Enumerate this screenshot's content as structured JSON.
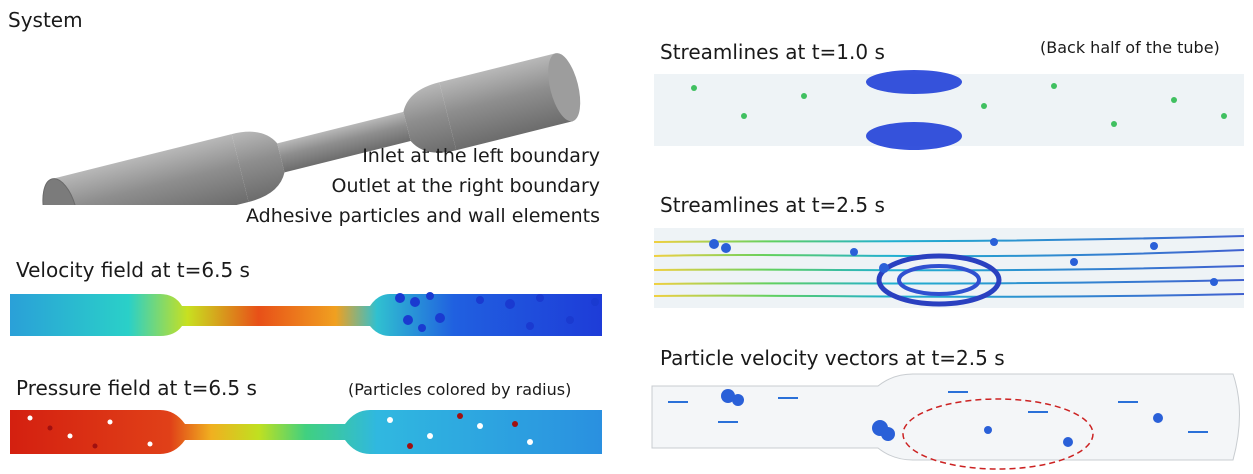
{
  "system": {
    "title": "System",
    "notes": [
      "Inlet at the left boundary",
      "Outlet at the right boundary",
      "Adhesive particles and wall elements"
    ]
  },
  "velocity_panel": {
    "title": "Velocity field at t=6.5 s"
  },
  "pressure_panel": {
    "title": "Pressure field at t=6.5 s",
    "note": "(Particles colored by radius)"
  },
  "stream1_panel": {
    "title": "Streamlines at t=1.0 s",
    "note": "(Back half of the tube)"
  },
  "stream2_panel": {
    "title": "Streamlines at t=2.5 s"
  },
  "vectors_panel": {
    "title": "Particle velocity vectors at t=2.5 s"
  },
  "colors": {
    "tube_gray": "#8c8c8c",
    "velocity_low": "#1e3cd8",
    "velocity_high": "#e02010",
    "pressure_high": "#d42010",
    "highlight_ellipse": "#cc2222"
  }
}
